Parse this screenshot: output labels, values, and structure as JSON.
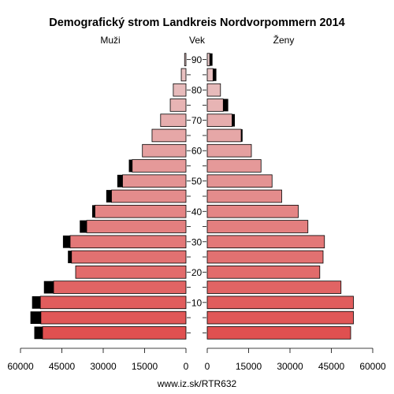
{
  "chart_data": {
    "type": "population-pyramid",
    "title": "Demografický strom Landkreis Nordvorpommern 2014",
    "left_label": "Muži",
    "center_label": "Vek",
    "right_label": "Ženy",
    "age_groups": [
      "0-4",
      "5-9",
      "10-14",
      "15-19",
      "20-24",
      "25-29",
      "30-34",
      "35-39",
      "40-44",
      "45-49",
      "50-54",
      "55-59",
      "60-64",
      "65-69",
      "70-74",
      "75-79",
      "80-84",
      "85-89",
      "90+"
    ],
    "age_ticks": [
      10,
      20,
      30,
      40,
      50,
      60,
      70,
      80,
      90
    ],
    "x_ticks_left": [
      "60000",
      "45000",
      "30000",
      "15000",
      "0"
    ],
    "x_ticks_right": [
      "0",
      "15000",
      "30000",
      "45000",
      "60000"
    ],
    "xlim": [
      0,
      60000
    ],
    "series": [
      {
        "name": "Muži",
        "side": "left",
        "values": [
          52000,
          52600,
          52800,
          48000,
          40000,
          41500,
          42000,
          36000,
          33000,
          27000,
          23000,
          19500,
          15800,
          12300,
          9200,
          5700,
          4600,
          1700,
          500
        ],
        "excess_values": [
          3000,
          3800,
          3000,
          3500,
          0,
          1300,
          2600,
          2500,
          1000,
          1900,
          1900,
          1200,
          0,
          0,
          0,
          0,
          0,
          0,
          0
        ]
      },
      {
        "name": "Ženy",
        "side": "right",
        "values": [
          52000,
          53000,
          53000,
          48500,
          40800,
          42000,
          42500,
          36500,
          33000,
          27000,
          23500,
          19500,
          16000,
          12300,
          9000,
          5800,
          4800,
          2100,
          900
        ],
        "excess_values": [
          0,
          0,
          0,
          0,
          0,
          0,
          0,
          0,
          0,
          0,
          0,
          0,
          0,
          500,
          1000,
          1800,
          0,
          1200,
          1000
        ]
      }
    ],
    "colors": {
      "bar_young": "#e05050",
      "bar_old": "#e8c8c8",
      "excess": "#000000",
      "outline": "#000000"
    }
  },
  "footer": {
    "source": "www.iz.sk/RTR632"
  }
}
